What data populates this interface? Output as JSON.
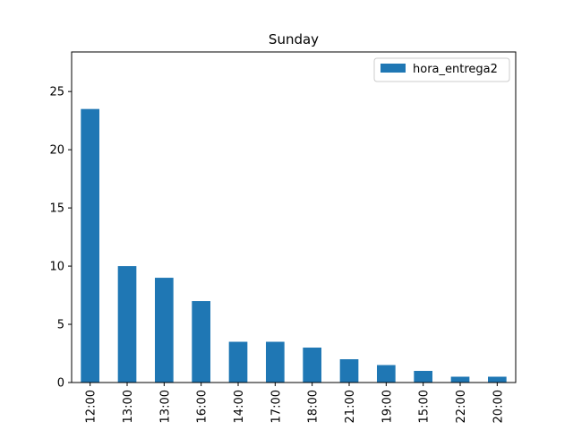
{
  "chart_data": {
    "type": "bar",
    "title": "Sunday",
    "xlabel": "",
    "ylabel": "",
    "categories": [
      "12:00",
      "13:00",
      "13:00",
      "16:00",
      "14:00",
      "17:00",
      "18:00",
      "21:00",
      "19:00",
      "15:00",
      "22:00",
      "20:00"
    ],
    "series": [
      {
        "name": "hora_entrega2",
        "color": "#1f77b4",
        "values": [
          23.5,
          10,
          9,
          7,
          3.5,
          3.5,
          3,
          2,
          1.5,
          1,
          0.5,
          0.5
        ]
      }
    ],
    "ylim": [
      0,
      28.4
    ],
    "yticks": [
      0,
      5,
      10,
      15,
      20,
      25
    ],
    "grid": false,
    "legend_position": "top-right"
  }
}
